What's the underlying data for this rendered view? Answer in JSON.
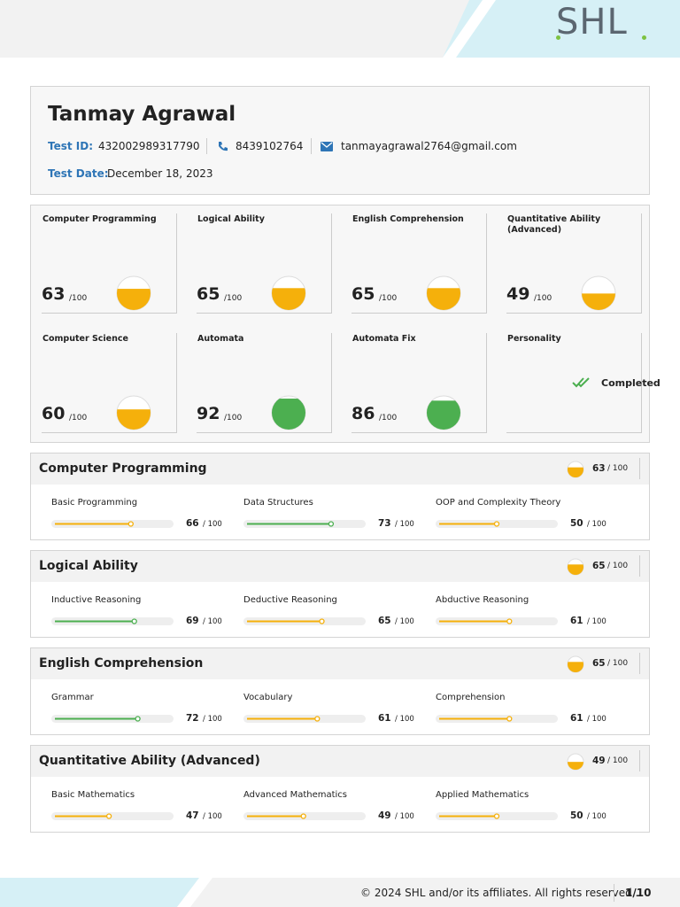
{
  "header": {
    "logo": "SHL"
  },
  "candidate": {
    "name": "Tanmay Agrawal",
    "test_id_label": "Test ID:",
    "test_id": "432002989317790",
    "phone": "8439102764",
    "email": "tanmayagrawal2764@gmail.com",
    "test_date_label": "Test Date:",
    "test_date": "December 18, 2023"
  },
  "scale_max": 100,
  "score_suffix": "/100",
  "skill_suffix": "/ 100",
  "summary": {
    "cards": [
      {
        "title": "Computer Programming",
        "score": 63,
        "color": "#f5b00b"
      },
      {
        "title": "Logical Ability",
        "score": 65,
        "color": "#f5b00b"
      },
      {
        "title": "English Comprehension",
        "score": 65,
        "color": "#f5b00b"
      },
      {
        "title": "Quantitative Ability (Advanced)",
        "score": 49,
        "color": "#f5b00b"
      },
      {
        "title": "Computer Science",
        "score": 60,
        "color": "#f5b00b"
      },
      {
        "title": "Automata",
        "score": 92,
        "color": "#4caf50"
      },
      {
        "title": "Automata Fix",
        "score": 86,
        "color": "#4caf50"
      }
    ],
    "personality": {
      "title": "Personality",
      "status": "Completed"
    }
  },
  "sections": [
    {
      "title": "Computer Programming",
      "score": 63,
      "color": "#f5b00b",
      "skills": [
        {
          "name": "Basic Programming",
          "score": 66,
          "color": "#f5b00b"
        },
        {
          "name": "Data Structures",
          "score": 73,
          "color": "#4caf50"
        },
        {
          "name": "OOP and Complexity Theory",
          "score": 50,
          "color": "#f5b00b"
        }
      ]
    },
    {
      "title": "Logical Ability",
      "score": 65,
      "color": "#f5b00b",
      "skills": [
        {
          "name": "Inductive Reasoning",
          "score": 69,
          "color": "#4caf50"
        },
        {
          "name": "Deductive Reasoning",
          "score": 65,
          "color": "#f5b00b"
        },
        {
          "name": "Abductive Reasoning",
          "score": 61,
          "color": "#f5b00b"
        }
      ]
    },
    {
      "title": "English Comprehension",
      "score": 65,
      "color": "#f5b00b",
      "skills": [
        {
          "name": "Grammar",
          "score": 72,
          "color": "#4caf50"
        },
        {
          "name": "Vocabulary",
          "score": 61,
          "color": "#f5b00b"
        },
        {
          "name": "Comprehension",
          "score": 61,
          "color": "#f5b00b"
        }
      ]
    },
    {
      "title": "Quantitative Ability (Advanced)",
      "score": 49,
      "color": "#f5b00b",
      "skills": [
        {
          "name": "Basic Mathematics",
          "score": 47,
          "color": "#f5b00b"
        },
        {
          "name": "Advanced Mathematics",
          "score": 49,
          "color": "#f5b00b"
        },
        {
          "name": "Applied Mathematics",
          "score": 50,
          "color": "#f5b00b"
        }
      ]
    }
  ],
  "footer": {
    "copyright": "© 2024 SHL and/or its affiliates. All rights reserved..",
    "page": "1/10"
  }
}
